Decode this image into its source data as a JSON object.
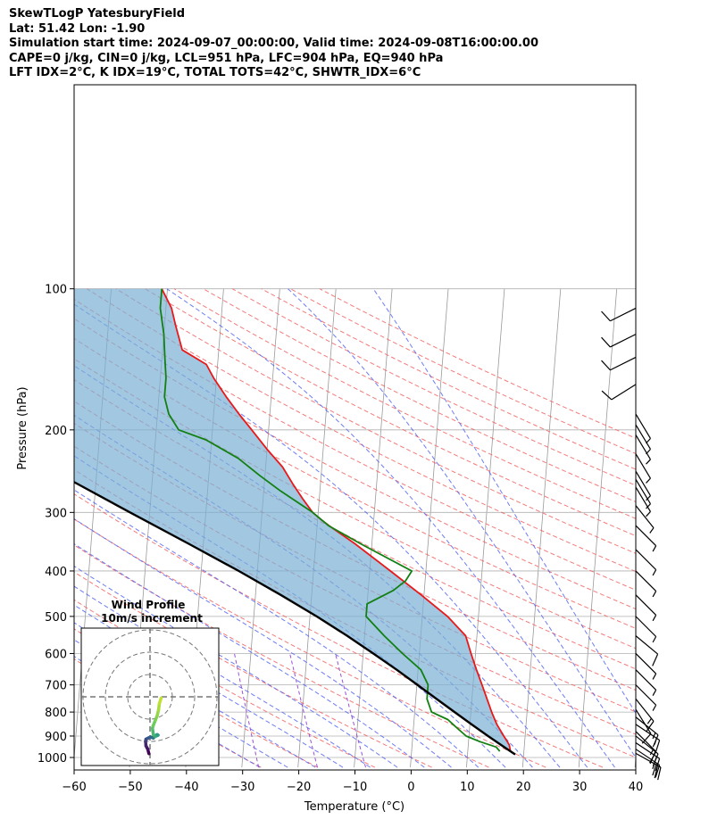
{
  "header": {
    "title": "SkewTLogP YatesburyField",
    "location": "Lat: 51.42   Lon: -1.90",
    "times": "Simulation start time: 2024-09-07_00:00:00, Valid time: 2024-09-08T16:00:00.00",
    "params": "CAPE=0 j/kg, CIN=0 j/kg, LCL=951 hPa, LFC=904 hPa, EQ=940 hPa",
    "indices": "LFT IDX=2°C, K IDX=19°C, TOTAL TOTS=42°C, SHWTR_IDX=6°C"
  },
  "chart_data": {
    "type": "skew-t",
    "xlabel": "Temperature (°C)",
    "ylabel": "Pressure (hPa)",
    "xlim": [
      -60,
      40
    ],
    "ylim": [
      1050,
      100
    ],
    "x_ticks": [
      -60,
      -50,
      -40,
      -30,
      -20,
      -10,
      0,
      10,
      20,
      30,
      40
    ],
    "y_ticks": [
      100,
      200,
      300,
      400,
      500,
      600,
      700,
      800,
      900,
      1000
    ],
    "grid": true,
    "colors": {
      "temperature": "#e8191b",
      "dewpoint": "#128012",
      "parcel": "#000000",
      "cape_fill": "#7bafd4",
      "dry_adiabat": "#f05a5a",
      "moist_adiabat": "#4a5cf0",
      "mixing_ratio": "#9b4fd6",
      "isotherm": "#9a9a9a"
    },
    "series": [
      {
        "key": "temperature",
        "pressure": [
          970,
          940,
          925,
          900,
          850,
          800,
          700,
          650,
          600,
          550,
          500,
          450,
          400,
          350,
          320,
          310,
          300,
          280,
          260,
          240,
          220,
          200,
          185,
          170,
          155,
          145,
          135,
          120,
          110,
          100
        ],
        "values": [
          17.6,
          17.3,
          16.9,
          16.2,
          14.8,
          13.7,
          11.6,
          10.4,
          9.2,
          8.0,
          4.5,
          -0.5,
          -6.3,
          -13.0,
          -17.9,
          -19.5,
          -21.0,
          -23.0,
          -25.0,
          -27.0,
          -30.0,
          -33.0,
          -35.5,
          -38.0,
          -40.5,
          -42.0,
          -46.5,
          -48.0,
          -49.0,
          -51.0
        ]
      },
      {
        "key": "dewpoint",
        "pressure": [
          970,
          950,
          925,
          900,
          860,
          830,
          800,
          750,
          700,
          650,
          600,
          550,
          500,
          470,
          440,
          420,
          400,
          350,
          320,
          300,
          270,
          250,
          230,
          210,
          200,
          185,
          170,
          155,
          140,
          125,
          110,
          100
        ],
        "values": [
          15.7,
          15.0,
          12.0,
          9.5,
          7.5,
          6.0,
          3.0,
          2.0,
          2.0,
          0.5,
          -3.0,
          -6.5,
          -10.0,
          -10.0,
          -5.5,
          -3.5,
          -2.5,
          -12.0,
          -18.0,
          -21.0,
          -27.0,
          -31.0,
          -35.0,
          -41.0,
          -46.0,
          -48.0,
          -49.0,
          -49.0,
          -49.5,
          -50.0,
          -51.0,
          -51.0
        ]
      },
      {
        "key": "parcel",
        "pressure": [
          985,
          950,
          900,
          850,
          800,
          750,
          700,
          650,
          600,
          550,
          500,
          450,
          400,
          350,
          300,
          250,
          200,
          150,
          100
        ],
        "values": [
          18.5,
          16.4,
          13.4,
          10.3,
          7.1,
          3.7,
          0.1,
          -3.8,
          -8.2,
          -13.1,
          -18.8,
          -25.5,
          -33.3,
          -42.6,
          -53.5,
          -66.2,
          -81.2,
          -99.1,
          -121.2
        ]
      }
    ],
    "hodograph": {
      "title": "Wind Profile",
      "subtitle": "10m/s increment",
      "u": [
        -0.5,
        -1.0,
        -1.8,
        -2.0,
        -1.8,
        -0.8,
        0.2,
        1.5,
        2.2,
        3.2,
        3.6,
        2.3,
        1.5,
        1.1,
        1.4,
        2.4,
        3.2,
        3.8,
        4.2,
        5.0
      ],
      "v": [
        -25.5,
        -23.5,
        -22.0,
        -20.0,
        -19.0,
        -18.5,
        -18.0,
        -18.5,
        -17.5,
        -17.0,
        -17.2,
        -17.8,
        -17.0,
        -14.2,
        -13.0,
        -10.5,
        -8.5,
        -6.0,
        -3.0,
        -0.5
      ]
    },
    "wind_barbs": {
      "pressure": [
        980,
        960,
        930,
        900,
        880,
        850,
        820,
        790,
        750,
        700,
        650,
        600,
        550,
        500,
        450,
        400,
        360,
        320,
        290,
        265,
        255,
        245,
        225,
        205,
        195,
        185,
        160,
        140,
        125,
        110
      ],
      "u": [
        -18,
        -18,
        -18,
        -15,
        -12,
        -12,
        -10,
        -5,
        -8,
        -5,
        -5,
        -5,
        -6,
        -5,
        -5,
        -5,
        -5,
        -5,
        -4,
        -3,
        -3,
        -3,
        -3,
        -3,
        -3,
        -3,
        8,
        10,
        10,
        10
      ],
      "v": [
        10,
        12,
        12,
        12,
        12,
        8,
        8,
        8,
        10,
        5,
        5,
        5,
        5,
        5,
        5,
        5,
        5,
        5,
        5,
        5,
        5,
        5,
        5,
        5,
        5,
        5,
        5,
        5,
        5,
        5
      ]
    }
  }
}
